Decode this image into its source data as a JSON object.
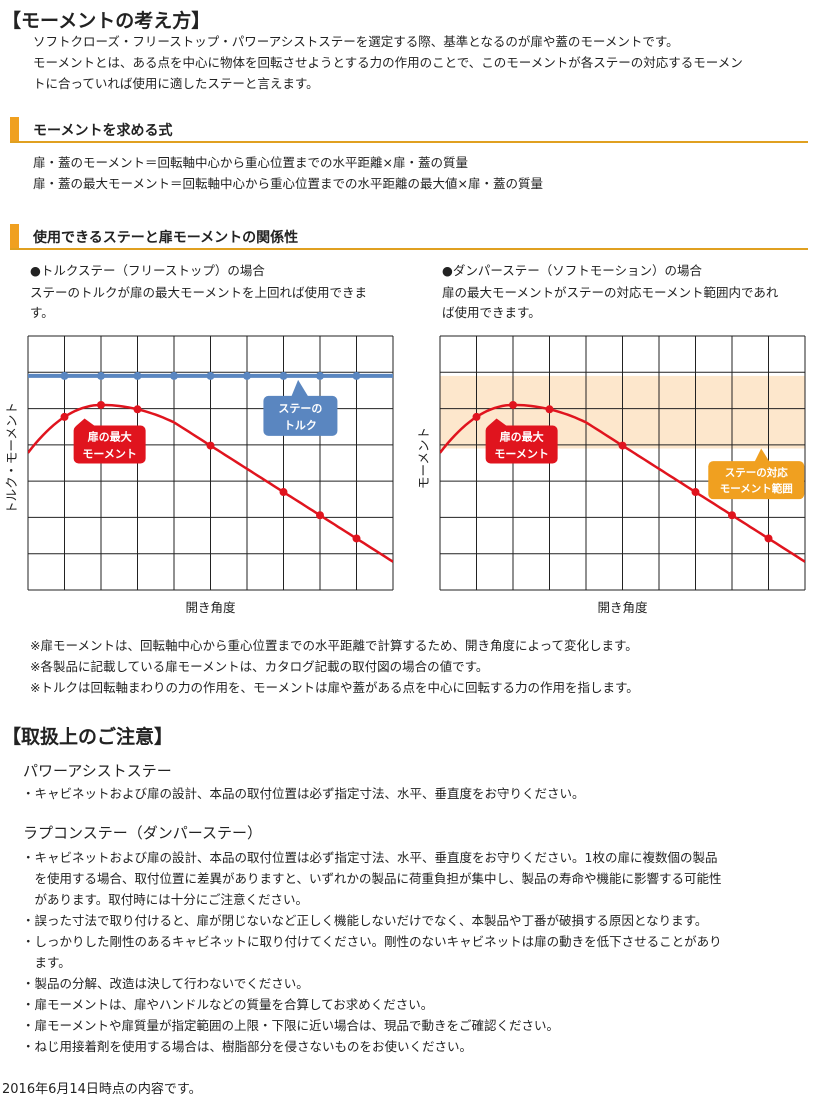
{
  "moment": {
    "title": "【モーメントの考え方】",
    "para1": "ソフトクローズ・フリーストップ・パワーアシストステーを選定する際、基準となるのが扉や蓋のモーメントです。",
    "para2": "モーメントとは、ある点を中心に物体を回転させようとする力の作用のことで、このモーメントが各ステーの対応するモーメン",
    "para3": "トに合っていれば使用に適したステーと言えます。"
  },
  "formula": {
    "heading": "モーメントを求める式",
    "line1": "扉・蓋のモーメント＝回転軸中心から重心位置までの水平距離×扉・蓋の質量",
    "line2": "扉・蓋の最大モーメント＝回転軸中心から重心位置までの水平距離の最大値×扉・蓋の質量"
  },
  "relation": {
    "heading": "使用できるステーと扉モーメントの関係性",
    "left": {
      "title": "●トルクステー（フリーストップ）の場合",
      "desc1": "ステーのトルクが扉の最大モーメントを上回れば使用できま",
      "desc2": "す。"
    },
    "right": {
      "title": "●ダンパーステー（ソフトモーション）の場合",
      "desc1": "扉の最大モーメントがステーの対応モーメント範囲内であれ",
      "desc2": "ば使用できます。"
    }
  },
  "chart_data": [
    {
      "type": "line",
      "xlabel": "開き角度",
      "ylabel": "トルク・モーメント",
      "grid": true,
      "series": [
        {
          "name": "扉の最大モーメント",
          "color": "#e0141e",
          "points": [
            [
              1,
              5.0
            ],
            [
              2,
              5.1
            ],
            [
              3,
              5.0
            ],
            [
              5,
              3.9
            ],
            [
              7,
              2.6
            ],
            [
              8,
              1.9
            ],
            [
              9,
              1.3
            ]
          ]
        },
        {
          "name": "ステーのトルク",
          "color": "#5a86c0",
          "points": [
            [
              1,
              5.9
            ],
            [
              2,
              5.9
            ],
            [
              3,
              5.9
            ],
            [
              4,
              5.9
            ],
            [
              5,
              5.9
            ],
            [
              6,
              5.9
            ],
            [
              7,
              5.9
            ],
            [
              8,
              5.9
            ],
            [
              9,
              5.9
            ]
          ]
        }
      ],
      "labels": {
        "moment": [
          "扉の最大",
          "モーメント"
        ],
        "torque": [
          "ステーの",
          "トルク"
        ]
      }
    },
    {
      "type": "line",
      "xlabel": "開き角度",
      "ylabel": "モーメント",
      "grid": true,
      "series": [
        {
          "name": "扉の最大モーメント",
          "color": "#e0141e",
          "points": [
            [
              1,
              5.0
            ],
            [
              2,
              5.1
            ],
            [
              3,
              5.0
            ],
            [
              5,
              3.9
            ],
            [
              7,
              2.6
            ],
            [
              8,
              1.9
            ],
            [
              9,
              1.3
            ]
          ]
        }
      ],
      "band": {
        "name": "ステーの対応モーメント範囲",
        "color": "#fde7cc",
        "range": [
          3.9,
          5.9
        ]
      },
      "labels": {
        "moment": [
          "扉の最大",
          "モーメント"
        ],
        "band": [
          "ステーの対応",
          "モーメント範囲"
        ]
      }
    }
  ],
  "notes": {
    "n1": "※扉モーメントは、回転軸中心から重心位置までの水平距離で計算するため、開き角度によって変化します。",
    "n2": "※各製品に記載している扉モーメントは、カタログ記載の取付図の場合の値です。",
    "n3": "※トルクは回転軸まわりの力の作用を、モーメントは扉や蓋がある点を中心に回転する力の作用を指します。"
  },
  "caution": {
    "title": "【取扱上のご注意】",
    "power": {
      "heading": "パワーアシストステー",
      "i1": "・キャビネットおよび扉の設計、本品の取付位置は必ず指定寸法、水平、垂直度をお守りください。"
    },
    "lapcon": {
      "heading": "ラプコンステー（ダンパーステー）",
      "l1": "・キャビネットおよび扉の設計、本品の取付位置は必ず指定寸法、水平、垂直度をお守りください。1枚の扉に複数個の製品",
      "l2": "　を使用する場合、取付位置に差異がありますと、いずれかの製品に荷重負担が集中し、製品の寿命や機能に影響する可能性",
      "l3": "　があります。取付時には十分にご注意ください。",
      "l4": "・誤った寸法で取り付けると、扉が閉じないなど正しく機能しないだけでなく、本製品や丁番が破損する原因となります。",
      "l5": "・しっかりした剛性のあるキャビネットに取り付けてください。剛性のないキャビネットは扉の動きを低下させることがあり",
      "l6": "　ます。",
      "l7": "・製品の分解、改造は決して行わないでください。",
      "l8": "・扉モーメントは、扉やハンドルなどの質量を合算してお求めください。",
      "l9": "・扉モーメントや扉質量が指定範囲の上限・下限に近い場合は、現品で動きをご確認ください。",
      "l10": "・ねじ用接着剤を使用する場合は、樹脂部分を侵さないものをお使いください。"
    }
  },
  "footer": "2016年6月14日時点の内容です。"
}
